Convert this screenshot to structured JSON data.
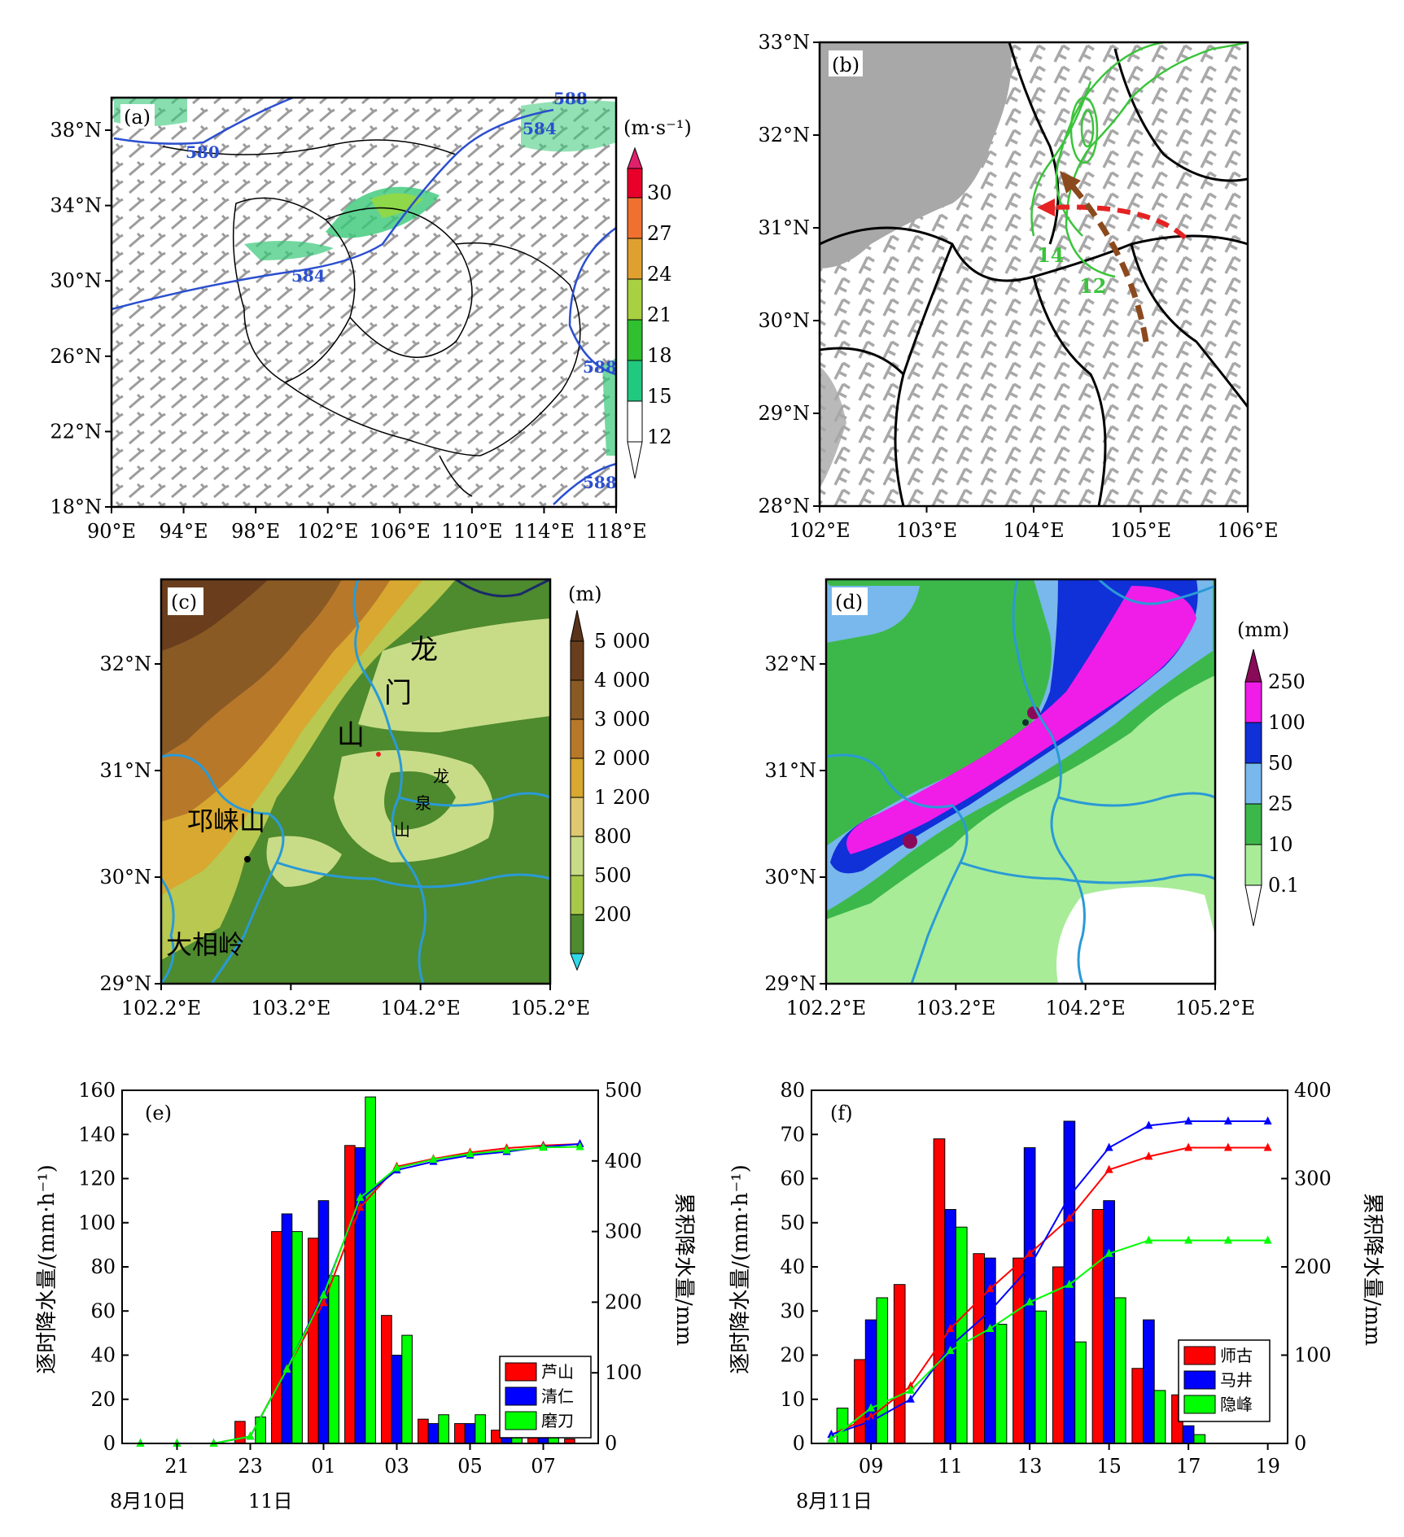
{
  "panel_a": {
    "label": "(a)",
    "unit": "(m·s⁻¹)",
    "y_ticks": [
      "38°N",
      "34°N",
      "30°N",
      "26°N",
      "22°N",
      "18°N"
    ],
    "x_ticks": [
      "90°E",
      "94°E",
      "98°E",
      "102°E",
      "106°E",
      "110°E",
      "114°E",
      "118°E"
    ],
    "contour_labels": [
      "580",
      "584",
      "584",
      "588",
      "588",
      "588"
    ],
    "colorbar": [
      "30",
      "27",
      "24",
      "21",
      "18",
      "15",
      "12"
    ]
  },
  "panel_b": {
    "label": "(b)",
    "y_ticks": [
      "33°N",
      "32°N",
      "31°N",
      "30°N",
      "29°N",
      "28°N"
    ],
    "x_ticks": [
      "102°E",
      "103°E",
      "104°E",
      "105°E",
      "106°E"
    ],
    "contour_labels": [
      "14",
      "12"
    ]
  },
  "panel_c": {
    "label": "(c)",
    "unit": "(m)",
    "y_ticks": [
      "32°N",
      "31°N",
      "30°N",
      "29°N"
    ],
    "x_ticks": [
      "102.2°E",
      "103.2°E",
      "104.2°E",
      "105.2°E"
    ],
    "colorbar": [
      "5 000",
      "4 000",
      "3 000",
      "2 000",
      "1 200",
      "800",
      "500",
      "200"
    ],
    "places": [
      "龙",
      "门",
      "山",
      "龙",
      "泉",
      "山",
      "邛崃山",
      "大相岭"
    ]
  },
  "panel_d": {
    "label": "(d)",
    "unit": "(mm)",
    "y_ticks": [
      "32°N",
      "31°N",
      "30°N",
      "29°N"
    ],
    "x_ticks": [
      "102.2°E",
      "103.2°E",
      "104.2°E",
      "105.2°E"
    ],
    "colorbar": [
      "250",
      "100",
      "50",
      "25",
      "10",
      "0.1"
    ]
  },
  "chart_data": [
    {
      "type": "bar",
      "panel": "(e)",
      "ylabel": "逐时降水量/(mm·h⁻¹)",
      "y2label": "累积降水量/mm",
      "ylim": [
        0,
        160
      ],
      "y2lim": [
        0,
        500
      ],
      "y_ticks": [
        "0",
        "20",
        "40",
        "60",
        "80",
        "100",
        "120",
        "140",
        "160"
      ],
      "y2_ticks": [
        "0",
        "100",
        "200",
        "300",
        "400",
        "500"
      ],
      "x_ticks": [
        "21",
        "23",
        "01",
        "03",
        "05",
        "07"
      ],
      "date_labels": [
        "8月10日",
        "11日"
      ],
      "legend": [
        "芦山",
        "清仁",
        "磨刀"
      ],
      "colors": [
        "#ff0000",
        "#0000ff",
        "#00ff00"
      ],
      "categories": [
        "20",
        "21",
        "22",
        "23",
        "00",
        "01",
        "02",
        "03",
        "04",
        "05",
        "06",
        "07",
        "08"
      ],
      "series": [
        {
          "name": "芦山",
          "values": [
            0,
            0,
            0,
            10,
            96,
            93,
            135,
            58,
            11,
            9,
            6,
            4,
            2
          ],
          "cumulative": [
            0,
            0,
            0,
            10,
            106,
            199,
            334,
            392,
            403,
            412,
            418,
            422,
            424
          ]
        },
        {
          "name": "清仁",
          "values": [
            0,
            0,
            0,
            0,
            104,
            110,
            134,
            40,
            9,
            9,
            6,
            4,
            0
          ],
          "cumulative": [
            0,
            0,
            0,
            10,
            105,
            213,
            345,
            387,
            399,
            408,
            413,
            420,
            424
          ]
        },
        {
          "name": "磨刀",
          "values": [
            0,
            0,
            0,
            12,
            96,
            76,
            157,
            49,
            13,
            13,
            6,
            3,
            0
          ],
          "cumulative": [
            0,
            0,
            0,
            10,
            105,
            210,
            348,
            390,
            402,
            410,
            415,
            419,
            420
          ]
        }
      ]
    },
    {
      "type": "bar",
      "panel": "(f)",
      "ylabel": "逐时降水量/(mm·h⁻¹)",
      "y2label": "累积降水量/mm",
      "ylim": [
        0,
        80
      ],
      "y2lim": [
        0,
        400
      ],
      "y_ticks": [
        "0",
        "10",
        "20",
        "30",
        "40",
        "50",
        "60",
        "70",
        "80"
      ],
      "y2_ticks": [
        "0",
        "100",
        "200",
        "300",
        "400"
      ],
      "x_ticks": [
        "09",
        "11",
        "13",
        "15",
        "17",
        "19"
      ],
      "date_labels": [
        "8月11日"
      ],
      "legend": [
        "师古",
        "马井",
        "隐峰"
      ],
      "colors": [
        "#ff0000",
        "#0000ff",
        "#00ff00"
      ],
      "categories": [
        "08",
        "09",
        "10",
        "11",
        "12",
        "13",
        "14",
        "15",
        "16",
        "17",
        "18",
        "19"
      ],
      "series": [
        {
          "name": "师古",
          "values": [
            0,
            19,
            36,
            69,
            43,
            42,
            40,
            53,
            17,
            11,
            0,
            0
          ],
          "cumulative": [
            10,
            30,
            65,
            130,
            175,
            215,
            255,
            310,
            325,
            335,
            335,
            335
          ]
        },
        {
          "name": "马井",
          "values": [
            0,
            28,
            0,
            53,
            42,
            67,
            73,
            55,
            28,
            4,
            0,
            0
          ],
          "cumulative": [
            10,
            25,
            50,
            110,
            150,
            200,
            280,
            335,
            360,
            365,
            365,
            365
          ]
        },
        {
          "name": "隐峰",
          "values": [
            8,
            33,
            0,
            49,
            27,
            30,
            23,
            33,
            12,
            2,
            0,
            0
          ],
          "cumulative": [
            5,
            40,
            60,
            105,
            130,
            160,
            180,
            215,
            230,
            230,
            230,
            230
          ]
        }
      ]
    }
  ]
}
